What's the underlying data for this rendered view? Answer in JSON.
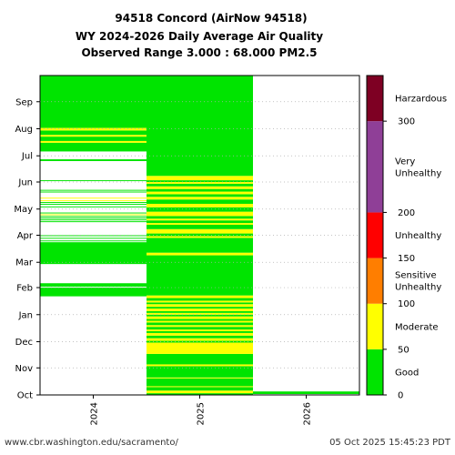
{
  "chart_data": {
    "type": "heatmap",
    "title_lines": [
      "94518 Concord (AirNow 94518)",
      "WY 2024-2026 Daily Average Air Quality",
      "Observed Range 3.000 : 68.000 PM2.5"
    ],
    "x_categories": [
      "2024",
      "2025",
      "2026"
    ],
    "y_months": [
      "Oct",
      "Nov",
      "Dec",
      "Jan",
      "Feb",
      "Mar",
      "Apr",
      "May",
      "Jun",
      "Jul",
      "Aug",
      "Sep"
    ],
    "y_unit": "day of water year",
    "y_range": [
      0,
      366
    ],
    "grid": "horizontal dotted at month boundaries",
    "colorbar": {
      "range": [
        0,
        350
      ],
      "ticks": [
        "0",
        "50",
        "100",
        "150",
        "200",
        "300"
      ],
      "tick_values": [
        0,
        50,
        100,
        150,
        200,
        300
      ],
      "categories": [
        {
          "label": "Good",
          "from": 0,
          "to": 50,
          "color": "#00e400"
        },
        {
          "label": "Moderate",
          "from": 50,
          "to": 100,
          "color": "#ffff00"
        },
        {
          "label": "Sensitive Unhealthy",
          "from": 100,
          "to": 150,
          "color": "#ff7e00"
        },
        {
          "label": "Unhealthy",
          "from": 150,
          "to": 200,
          "color": "#ff0000"
        },
        {
          "label": "Very Unhealthy",
          "from": 200,
          "to": 300,
          "color": "#8f3f97"
        },
        {
          "label": "Harzardous",
          "from": 300,
          "to": 350,
          "color": "#7e0023"
        }
      ]
    },
    "series": [
      {
        "water_year": "2024",
        "runs": [
          {
            "start": 113,
            "end": 123,
            "category": "Good"
          },
          {
            "start": 124,
            "end": 128,
            "category": "Good"
          },
          {
            "start": 150,
            "end": 175,
            "category": "Good"
          },
          {
            "start": 176,
            "end": 177,
            "category": "Good"
          },
          {
            "start": 179,
            "end": 180,
            "category": "Good"
          },
          {
            "start": 182,
            "end": 183,
            "category": "Good"
          },
          {
            "start": 198,
            "end": 199,
            "category": "Good"
          },
          {
            "start": 200,
            "end": 201,
            "category": "Good"
          },
          {
            "start": 202,
            "end": 203,
            "category": "Good"
          },
          {
            "start": 204,
            "end": 205,
            "category": "Good"
          },
          {
            "start": 206,
            "end": 207,
            "category": "Moderate"
          },
          {
            "start": 208,
            "end": 209,
            "category": "Good"
          },
          {
            "start": 215,
            "end": 216,
            "category": "Good"
          },
          {
            "start": 218,
            "end": 219,
            "category": "Good"
          },
          {
            "start": 220,
            "end": 221,
            "category": "Good"
          },
          {
            "start": 222,
            "end": 223,
            "category": "Moderate"
          },
          {
            "start": 225,
            "end": 226,
            "category": "Moderate"
          },
          {
            "start": 232,
            "end": 233,
            "category": "Good"
          },
          {
            "start": 234,
            "end": 235,
            "category": "Good"
          },
          {
            "start": 245,
            "end": 246,
            "category": "Good"
          },
          {
            "start": 268,
            "end": 270,
            "category": "Good"
          },
          {
            "start": 279,
            "end": 289,
            "category": "Good"
          },
          {
            "start": 289,
            "end": 291,
            "category": "Moderate"
          },
          {
            "start": 291,
            "end": 296,
            "category": "Good"
          },
          {
            "start": 296,
            "end": 298,
            "category": "Moderate"
          },
          {
            "start": 298,
            "end": 303,
            "category": "Good"
          },
          {
            "start": 303,
            "end": 306,
            "category": "Moderate"
          },
          {
            "start": 306,
            "end": 366,
            "category": "Good"
          }
        ]
      },
      {
        "water_year": "2025",
        "runs": [
          {
            "start": 0,
            "end": 2,
            "category": "Good"
          },
          {
            "start": 2,
            "end": 5,
            "category": "Moderate"
          },
          {
            "start": 5,
            "end": 9,
            "category": "Good"
          },
          {
            "start": 9,
            "end": 10,
            "category": "Moderate"
          },
          {
            "start": 10,
            "end": 19,
            "category": "Good"
          },
          {
            "start": 19,
            "end": 20,
            "category": "Moderate"
          },
          {
            "start": 20,
            "end": 33,
            "category": "Good"
          },
          {
            "start": 33,
            "end": 35,
            "category": "Moderate"
          },
          {
            "start": 35,
            "end": 47,
            "category": "Good"
          },
          {
            "start": 47,
            "end": 60,
            "category": "Moderate"
          },
          {
            "start": 60,
            "end": 62,
            "category": "Good"
          },
          {
            "start": 62,
            "end": 65,
            "category": "Moderate"
          },
          {
            "start": 65,
            "end": 68,
            "category": "Good"
          },
          {
            "start": 68,
            "end": 71,
            "category": "Moderate"
          },
          {
            "start": 71,
            "end": 73,
            "category": "Good"
          },
          {
            "start": 73,
            "end": 75,
            "category": "Moderate"
          },
          {
            "start": 75,
            "end": 78,
            "category": "Good"
          },
          {
            "start": 78,
            "end": 80,
            "category": "Moderate"
          },
          {
            "start": 80,
            "end": 83,
            "category": "Good"
          },
          {
            "start": 83,
            "end": 85,
            "category": "Moderate"
          },
          {
            "start": 85,
            "end": 87,
            "category": "Good"
          },
          {
            "start": 87,
            "end": 90,
            "category": "Moderate"
          },
          {
            "start": 90,
            "end": 92,
            "category": "Good"
          },
          {
            "start": 92,
            "end": 94,
            "category": "Moderate"
          },
          {
            "start": 94,
            "end": 96,
            "category": "Good"
          },
          {
            "start": 96,
            "end": 99,
            "category": "Moderate"
          },
          {
            "start": 99,
            "end": 101,
            "category": "Good"
          },
          {
            "start": 101,
            "end": 104,
            "category": "Moderate"
          },
          {
            "start": 104,
            "end": 106,
            "category": "Good"
          },
          {
            "start": 106,
            "end": 108,
            "category": "Moderate"
          },
          {
            "start": 108,
            "end": 111,
            "category": "Good"
          },
          {
            "start": 111,
            "end": 114,
            "category": "Moderate"
          },
          {
            "start": 114,
            "end": 160,
            "category": "Good"
          },
          {
            "start": 160,
            "end": 163,
            "category": "Moderate"
          },
          {
            "start": 163,
            "end": 180,
            "category": "Good"
          },
          {
            "start": 180,
            "end": 182,
            "category": "Moderate"
          },
          {
            "start": 182,
            "end": 185,
            "category": "Good"
          },
          {
            "start": 185,
            "end": 190,
            "category": "Moderate"
          },
          {
            "start": 190,
            "end": 195,
            "category": "Good"
          },
          {
            "start": 195,
            "end": 197,
            "category": "Moderate"
          },
          {
            "start": 197,
            "end": 200,
            "category": "Good"
          },
          {
            "start": 200,
            "end": 202,
            "category": "Moderate"
          },
          {
            "start": 202,
            "end": 205,
            "category": "Good"
          },
          {
            "start": 205,
            "end": 210,
            "category": "Moderate"
          },
          {
            "start": 210,
            "end": 215,
            "category": "Good"
          },
          {
            "start": 215,
            "end": 219,
            "category": "Moderate"
          },
          {
            "start": 219,
            "end": 224,
            "category": "Good"
          },
          {
            "start": 224,
            "end": 227,
            "category": "Moderate"
          },
          {
            "start": 227,
            "end": 230,
            "category": "Good"
          },
          {
            "start": 230,
            "end": 233,
            "category": "Moderate"
          },
          {
            "start": 233,
            "end": 236,
            "category": "Good"
          },
          {
            "start": 236,
            "end": 239,
            "category": "Moderate"
          },
          {
            "start": 239,
            "end": 242,
            "category": "Good"
          },
          {
            "start": 242,
            "end": 244,
            "category": "Moderate"
          },
          {
            "start": 244,
            "end": 246,
            "category": "Good"
          },
          {
            "start": 246,
            "end": 251,
            "category": "Moderate"
          },
          {
            "start": 251,
            "end": 366,
            "category": "Good"
          }
        ]
      },
      {
        "water_year": "2026",
        "runs": [
          {
            "start": 1,
            "end": 4,
            "category": "Good"
          }
        ]
      }
    ]
  },
  "footer": {
    "source": "www.cbr.washington.edu/sacramento/",
    "timestamp": "05 Oct 2025 15:45:23 PDT"
  }
}
